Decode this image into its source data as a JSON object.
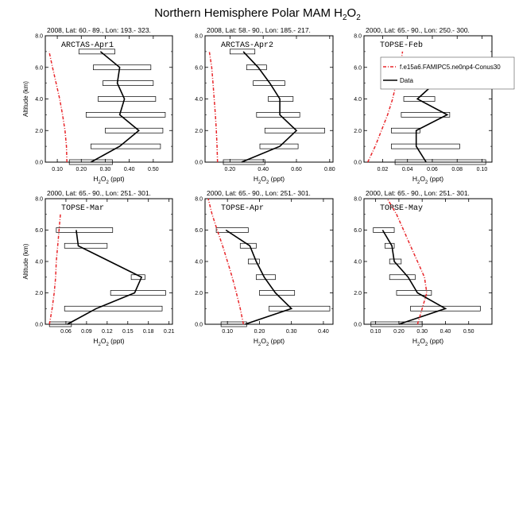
{
  "title_main": "Northern Hemisphere Polar MAM H",
  "title_sub": "2",
  "title_tail": "O",
  "title_sub2": "2",
  "colors": {
    "model": "#e8262a",
    "obs": "#000000"
  },
  "legend": {
    "model_label": "f.e15a6.FAMIPC5.ne0np4-Conus30",
    "obs_label": "Data"
  },
  "chart_data": [
    {
      "type": "line",
      "panel": "ARCTAS-Apr1",
      "header": "2008, Lat:  60.- 89., Lon: 193.- 323.",
      "xlabel": "H2O2 (ppt)",
      "ylabel": "Altitude (km)",
      "xlim": [
        0.05,
        0.58
      ],
      "ylim": [
        0,
        8
      ],
      "xticks": [
        0.1,
        0.2,
        0.3,
        0.4,
        0.5
      ],
      "xticklabels": [
        "0.10",
        "0.20",
        "0.30",
        "0.40",
        "0.50"
      ],
      "yticks": [
        0,
        2,
        4,
        6,
        8
      ],
      "yticklabels": [
        "0.0",
        "2.0",
        "4.0",
        "6.0",
        "8.0"
      ],
      "model": {
        "x": [
          0.14,
          0.138,
          0.132,
          0.122,
          0.11,
          0.095,
          0.08,
          0.066
        ],
        "y": [
          0,
          1,
          2,
          3,
          4,
          5,
          6,
          7
        ]
      },
      "obs": {
        "x": [
          0.24,
          0.36,
          0.44,
          0.36,
          0.38,
          0.35,
          0.36,
          0.28
        ],
        "y": [
          0,
          1,
          2,
          3,
          4,
          5,
          6,
          7
        ],
        "xmin": [
          0.15,
          0.24,
          0.3,
          0.22,
          0.27,
          0.29,
          0.25,
          0.19
        ],
        "xmax": [
          0.33,
          0.53,
          0.54,
          0.55,
          0.51,
          0.5,
          0.49,
          0.34
        ]
      }
    },
    {
      "type": "line",
      "panel": "ARCTAS-Apr2",
      "header": "2008, Lat:  58.- 90., Lon: 185.- 217.",
      "xlabel": "H2O2 (ppt)",
      "ylabel": "",
      "xlim": [
        0.05,
        0.82
      ],
      "ylim": [
        0,
        8
      ],
      "xticks": [
        0.2,
        0.4,
        0.6,
        0.8
      ],
      "xticklabels": [
        "0.20",
        "0.40",
        "0.60",
        "0.80"
      ],
      "yticks": [
        0,
        2,
        4,
        6,
        8
      ],
      "yticklabels": [
        "0.0",
        "2.0",
        "4.0",
        "6.0",
        "8.0"
      ],
      "model": {
        "x": [
          0.125,
          0.122,
          0.118,
          0.112,
          0.105,
          0.098,
          0.09,
          0.076
        ],
        "y": [
          0,
          1,
          2,
          3,
          4,
          5,
          6,
          7
        ]
      },
      "obs": {
        "x": [
          0.27,
          0.5,
          0.6,
          0.5,
          0.5,
          0.44,
          0.37,
          0.28
        ],
        "y": [
          0,
          1,
          2,
          3,
          4,
          5,
          6,
          7
        ],
        "xmin": [
          0.16,
          0.38,
          0.41,
          0.36,
          0.43,
          0.34,
          0.3,
          0.2
        ],
        "xmax": [
          0.41,
          0.61,
          0.77,
          0.62,
          0.58,
          0.53,
          0.42,
          0.35
        ]
      }
    },
    {
      "type": "line",
      "panel": "TOPSE-Feb",
      "header": "2000, Lat: 65.- 90., Lon: 250.- 300.",
      "xlabel": "H2O2 (ppt)",
      "ylabel": "",
      "xlim": [
        0.005,
        0.108
      ],
      "ylim": [
        0,
        8
      ],
      "xticks": [
        0.02,
        0.04,
        0.06,
        0.08,
        0.1
      ],
      "xticklabels": [
        "0.02",
        "0.04",
        "0.06",
        "0.08",
        "0.10"
      ],
      "yticks": [
        0,
        2,
        4,
        6,
        8
      ],
      "yticklabels": [
        "0.0",
        "2.0",
        "4.0",
        "6.0",
        "8.0"
      ],
      "model": {
        "x": [
          0.008,
          0.014,
          0.019,
          0.024,
          0.028,
          0.031,
          0.034,
          0.036
        ],
        "y": [
          0,
          1,
          2,
          3,
          4,
          5,
          6,
          7
        ]
      },
      "obs": {
        "x": [
          0.055,
          0.047,
          0.047,
          0.072,
          0.048,
          0.062,
          0.04
        ],
        "y": [
          0,
          1,
          2,
          3,
          4,
          5,
          6
        ],
        "xmin": [
          0.03,
          0.027,
          0.027,
          0.035,
          0.037,
          0.027,
          0.02
        ],
        "xmax": [
          0.103,
          0.082,
          0.05,
          0.074,
          0.062,
          0.1,
          0.052
        ]
      }
    },
    {
      "type": "line",
      "panel": "TOPSE-Mar",
      "header": "2000, Lat: 65.- 90., Lon: 251.- 301.",
      "xlabel": "H2O2 (ppt)",
      "ylabel": "Altitude (km)",
      "xlim": [
        0.03,
        0.215
      ],
      "ylim": [
        0,
        8
      ],
      "xticks": [
        0.06,
        0.09,
        0.12,
        0.15,
        0.18,
        0.21
      ],
      "xticklabels": [
        "0.06",
        "0.09",
        "0.12",
        "0.15",
        "0.18",
        "0.21"
      ],
      "yticks": [
        0,
        2,
        4,
        6,
        8
      ],
      "yticklabels": [
        "0.0",
        "2.0",
        "4.0",
        "6.0",
        "8.0"
      ],
      "model": {
        "x": [
          0.036,
          0.04,
          0.043,
          0.045,
          0.046,
          0.048,
          0.05,
          0.052
        ],
        "y": [
          0,
          1,
          2,
          3,
          4,
          5,
          6,
          7
        ]
      },
      "obs": {
        "x": [
          0.062,
          0.104,
          0.16,
          0.17,
          0.078,
          0.075
        ],
        "y": [
          0,
          1,
          2,
          3,
          5,
          6
        ],
        "xmin": [
          0.036,
          0.058,
          0.125,
          0.155,
          0.058,
          0.046
        ],
        "xmax": [
          0.068,
          0.2,
          0.205,
          0.175,
          0.12,
          0.128
        ]
      }
    },
    {
      "type": "line",
      "panel": "TOPSE-Apr",
      "header": "2000, Lat: 65.- 90., Lon: 251.- 301.",
      "xlabel": "H2O2 (ppt)",
      "ylabel": "",
      "xlim": [
        0.03,
        0.43
      ],
      "ylim": [
        0,
        8
      ],
      "xticks": [
        0.1,
        0.2,
        0.3,
        0.4
      ],
      "xticklabels": [
        "0.10",
        "0.20",
        "0.30",
        "0.40"
      ],
      "yticks": [
        0,
        2,
        4,
        6,
        8
      ],
      "yticklabels": [
        "0.0",
        "2.0",
        "4.0",
        "6.0",
        "8.0"
      ],
      "model": {
        "x": [
          0.15,
          0.14,
          0.128,
          0.115,
          0.1,
          0.085,
          0.068,
          0.052,
          0.04
        ],
        "y": [
          0,
          1,
          2,
          3,
          4,
          5,
          6,
          7,
          8
        ]
      },
      "obs": {
        "x": [
          0.155,
          0.3,
          0.25,
          0.215,
          0.19,
          0.17,
          0.095
        ],
        "y": [
          0,
          1,
          2,
          3,
          4,
          5,
          6
        ],
        "xmin": [
          0.08,
          0.23,
          0.2,
          0.19,
          0.165,
          0.14,
          0.065
        ],
        "xmax": [
          0.16,
          0.42,
          0.31,
          0.25,
          0.2,
          0.19,
          0.165
        ]
      }
    },
    {
      "type": "line",
      "panel": "TOPSE-May",
      "header": "2000, Lat: 65.- 90., Lon: 251.- 301.",
      "xlabel": "H2O2 (ppt)",
      "ylabel": "",
      "xlim": [
        0.05,
        0.6
      ],
      "ylim": [
        0,
        8
      ],
      "xticks": [
        0.1,
        0.2,
        0.3,
        0.4,
        0.5
      ],
      "xticklabels": [
        "0.10",
        "0.20",
        "0.30",
        "0.40",
        "0.50"
      ],
      "yticks": [
        0,
        2,
        4,
        6,
        8
      ],
      "yticklabels": [
        "0.0",
        "2.0",
        "4.0",
        "6.0",
        "8.0"
      ],
      "model": {
        "x": [
          0.28,
          0.3,
          0.32,
          0.31,
          0.28,
          0.25,
          0.22,
          0.19,
          0.15
        ],
        "y": [
          0,
          1,
          2,
          3,
          4,
          5,
          6,
          7,
          8
        ]
      },
      "obs": {
        "x": [
          0.2,
          0.4,
          0.28,
          0.24,
          0.18,
          0.17,
          0.13
        ],
        "y": [
          0,
          1,
          2,
          3,
          4,
          5,
          6
        ],
        "xmin": [
          0.08,
          0.25,
          0.19,
          0.16,
          0.16,
          0.14,
          0.09
        ],
        "xmax": [
          0.3,
          0.55,
          0.34,
          0.27,
          0.21,
          0.18,
          0.18
        ]
      }
    }
  ]
}
